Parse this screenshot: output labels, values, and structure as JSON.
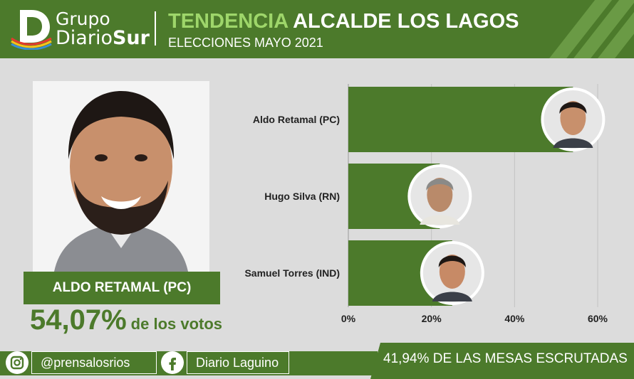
{
  "header": {
    "logo_line1": "Grupo",
    "logo_line2_a": "Diario",
    "logo_line2_b": "Sur",
    "title_accent": "TENDENCIA",
    "title_rest": "ALCALDE LOS LAGOS",
    "subtitle": "ELECCIONES MAYO 2021"
  },
  "winner": {
    "name": "ALDO RETAMAL (PC)",
    "percent": "54,07%",
    "percent_suffix": "de los votos"
  },
  "chart_data": {
    "type": "bar",
    "orientation": "horizontal",
    "categories": [
      "Aldo Retamal (PC)",
      "Hugo Silva (RN)",
      "Samuel Torres (IND)"
    ],
    "values": [
      54.07,
      22,
      25
    ],
    "xlim": [
      0,
      60
    ],
    "xticks": [
      "0%",
      "20%",
      "40%",
      "60%"
    ],
    "grid": true,
    "bar_color": "#4c7a2b"
  },
  "footer": {
    "instagram": "@prensalosrios",
    "facebook": "Diario Laguino",
    "tables": "41,94% DE LAS MESAS ESCRUTADAS"
  },
  "colors": {
    "brand_green": "#4c7a2b",
    "accent_green": "#9ed66a",
    "background": "#dcdcdc"
  },
  "icons": [
    "instagram-icon",
    "facebook-icon"
  ]
}
